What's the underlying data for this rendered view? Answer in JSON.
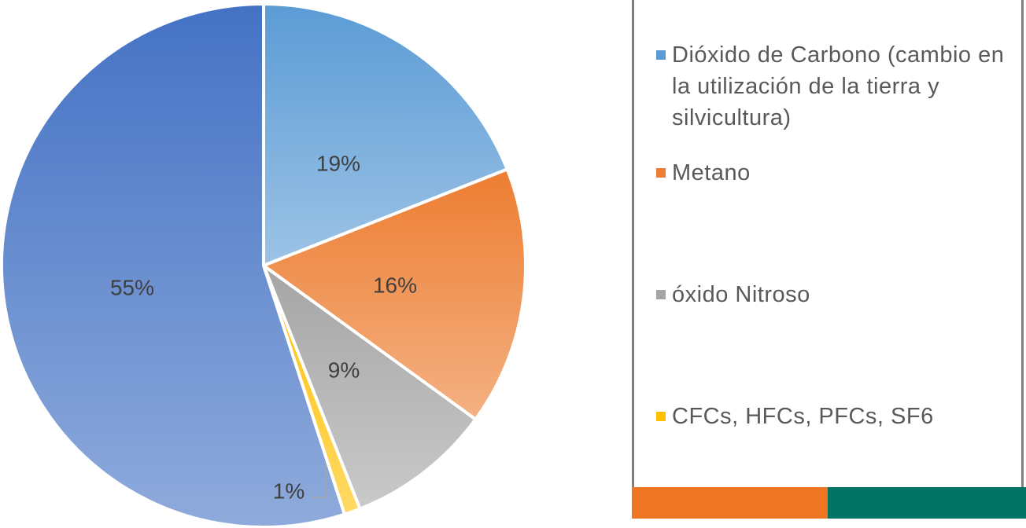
{
  "chart_data": {
    "type": "pie",
    "categories": [
      "Dióxido  de Carbono (cambio en la utilización de la tierra y silvicultura)",
      "Metano",
      "óxido Nitroso",
      "CFCs, HFCs, PFCs, SF6",
      null
    ],
    "values": [
      19,
      16,
      9,
      1,
      55
    ],
    "value_labels": [
      "19%",
      "16%",
      "9%",
      "1%",
      "55%"
    ],
    "colors": [
      "#5b9bd5",
      "#ed7d31",
      "#a5a5a5",
      "#ffc000",
      "#4472c4"
    ]
  }
}
